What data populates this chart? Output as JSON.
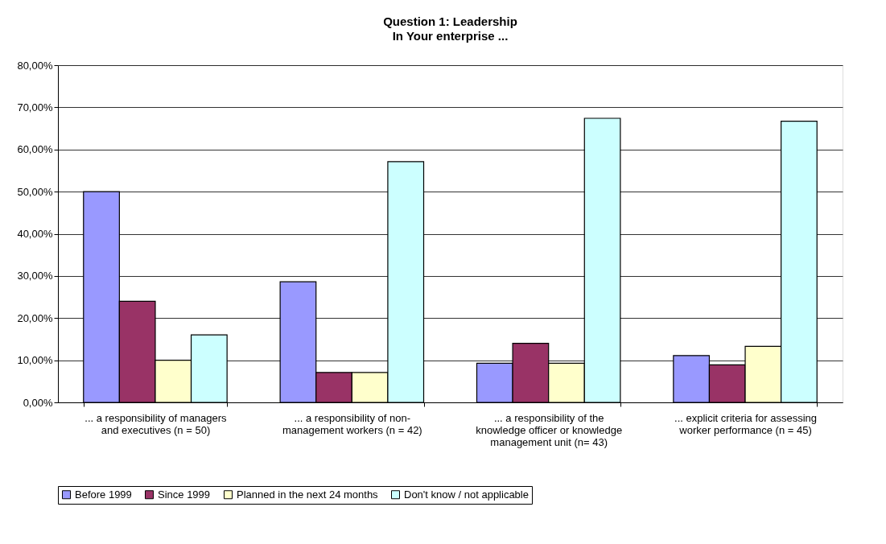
{
  "chart_data": {
    "type": "bar",
    "title": "Question 1: Leadership",
    "subtitle": "In Your enterprise ...",
    "categories": [
      "... a responsibility of managers and executives  (n = 50)",
      "... a responsibility of non-management workers  (n = 42)",
      "... a responsibility of the knowledge officer or knowledge management unit  (n= 43)",
      "... explicit criteria for assessing worker performance  (n = 45)"
    ],
    "series": [
      {
        "name": "Before 1999",
        "color": "#9999ff",
        "values": [
          50,
          28.6,
          9.3,
          11.1
        ]
      },
      {
        "name": "Since 1999",
        "color": "#993366",
        "values": [
          24,
          7.1,
          14.0,
          8.9
        ]
      },
      {
        "name": "Planned in the next 24 months",
        "color": "#ffffcc",
        "values": [
          10,
          7.1,
          9.3,
          13.3
        ]
      },
      {
        "name": "Don't know / not applicable",
        "color": "#ccffff",
        "values": [
          16,
          57.1,
          67.4,
          66.7
        ]
      }
    ],
    "ylim": [
      0,
      80
    ],
    "yticks": [
      {
        "value": 0,
        "label": "0,00%"
      },
      {
        "value": 10,
        "label": "10,00%"
      },
      {
        "value": 20,
        "label": "20,00%"
      },
      {
        "value": 30,
        "label": "30,00%"
      },
      {
        "value": 40,
        "label": "40,00%"
      },
      {
        "value": 50,
        "label": "50,00%"
      },
      {
        "value": 60,
        "label": "60,00%"
      },
      {
        "value": 70,
        "label": "70,00%"
      },
      {
        "value": 80,
        "label": "80,00%"
      }
    ],
    "grid": "y",
    "legend": "bottom"
  }
}
